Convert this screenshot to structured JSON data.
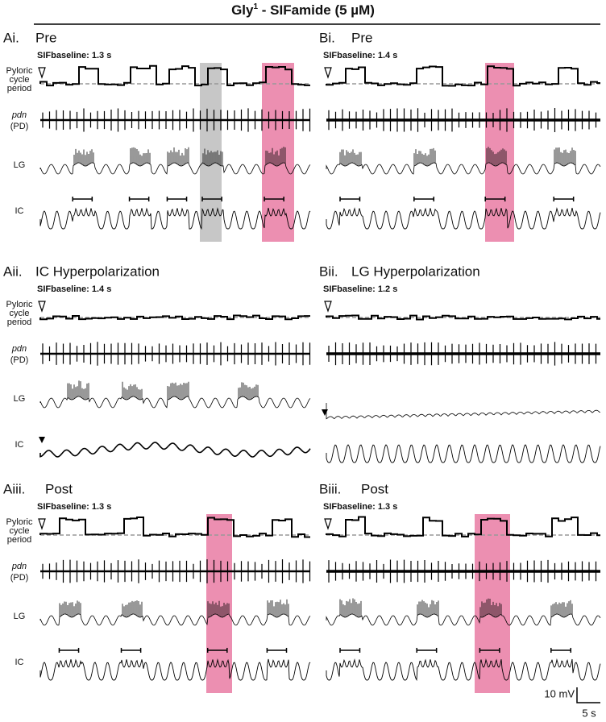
{
  "header": {
    "title_main": "Gly",
    "title_sup": "1",
    "title_rest": " - SIFamide (5 µM)"
  },
  "panels": [
    {
      "label": "Ai.",
      "title": "Pre",
      "baseline": "SIFbaseline: 1.3 s"
    },
    {
      "label": "Bi.",
      "title": "Pre",
      "baseline": "SIFbaseline: 1.4 s"
    },
    {
      "label": "Aii.",
      "title": "IC Hyperpolarization",
      "baseline": "SIFbaseline: 1.4 s"
    },
    {
      "label": "Bii.",
      "title": "LG Hyperpolarization",
      "baseline": "SIFbaseline: 1.2 s"
    },
    {
      "label": "Aiii.",
      "title": "Post",
      "baseline": "SIFbaseline: 1.3 s"
    },
    {
      "label": "Biii.",
      "title": "Post",
      "baseline": "SIFbaseline: 1.3 s"
    }
  ],
  "row_labels": {
    "pyloric": [
      "Pyloric",
      "cycle",
      "period"
    ],
    "pdn": "pdn",
    "pd": "(PD)",
    "lg": "LG",
    "ic": "IC"
  },
  "scale_bar": {
    "voltage": "10 mV",
    "time": "5 s"
  }
}
